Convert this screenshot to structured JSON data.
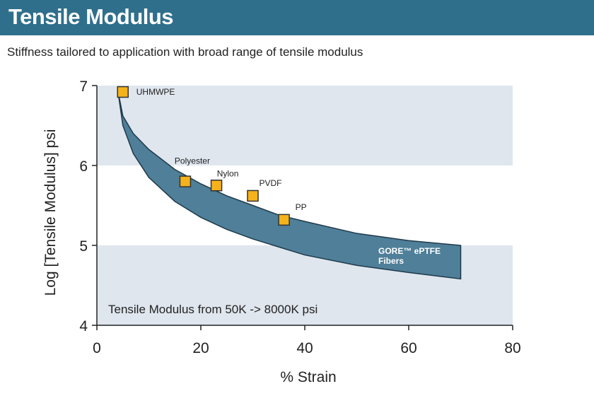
{
  "header": {
    "title": "Tensile Modulus"
  },
  "subtitle": "Stiffness tailored to application with broad range of tensile modulus",
  "colors": {
    "header_bg": "#2f6f8c",
    "band": "#dfe6ee",
    "region_fill": "#4f7f99",
    "marker_fill": "#f5b21b",
    "marker_stroke": "#333333"
  },
  "chart_data": {
    "type": "scatter",
    "title": "",
    "xlabel": "% Strain",
    "ylabel": "Log [Tensile Modulus] psi",
    "xlim": [
      0,
      80
    ],
    "ylim": [
      4,
      7
    ],
    "xticks": [
      0,
      20,
      40,
      60,
      80
    ],
    "yticks": [
      4,
      5,
      6,
      7
    ],
    "shaded_bands_y": [
      [
        4,
        5
      ],
      [
        6,
        7
      ]
    ],
    "points": [
      {
        "label": "UHMWPE",
        "x": 5,
        "y": 6.92
      },
      {
        "label": "Polyester",
        "x": 17,
        "y": 5.8
      },
      {
        "label": "Nylon",
        "x": 23,
        "y": 5.75
      },
      {
        "label": "PVDF",
        "x": 30,
        "y": 5.62
      },
      {
        "label": "PP",
        "x": 36,
        "y": 5.32
      }
    ],
    "region": {
      "label_line1": "GORE™ ePTFE",
      "label_line2": "Fibers",
      "upper": [
        [
          4,
          6.95
        ],
        [
          5,
          6.62
        ],
        [
          7,
          6.4
        ],
        [
          10,
          6.2
        ],
        [
          15,
          5.95
        ],
        [
          20,
          5.77
        ],
        [
          25,
          5.62
        ],
        [
          30,
          5.5
        ],
        [
          35,
          5.38
        ],
        [
          40,
          5.3
        ],
        [
          50,
          5.15
        ],
        [
          60,
          5.06
        ],
        [
          70,
          5.0
        ]
      ],
      "lower": [
        [
          4,
          6.95
        ],
        [
          5,
          6.5
        ],
        [
          7,
          6.15
        ],
        [
          10,
          5.85
        ],
        [
          15,
          5.55
        ],
        [
          20,
          5.35
        ],
        [
          25,
          5.2
        ],
        [
          30,
          5.08
        ],
        [
          35,
          4.98
        ],
        [
          40,
          4.88
        ],
        [
          50,
          4.75
        ],
        [
          60,
          4.66
        ],
        [
          70,
          4.58
        ]
      ]
    },
    "annotation": "Tensile Modulus from 50K -> 8000K psi"
  }
}
